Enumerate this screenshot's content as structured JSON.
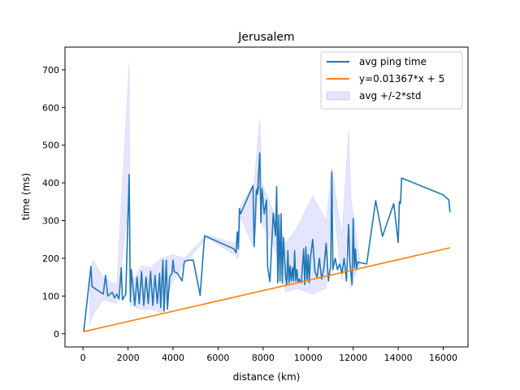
{
  "chart_data": {
    "type": "line",
    "title": "Jerusalem",
    "xlabel": "distance (km)",
    "ylabel": "time (ms)",
    "xlim": [
      -800,
      17100
    ],
    "ylim": [
      -35,
      760
    ],
    "x_ticks": [
      0,
      2000,
      4000,
      6000,
      8000,
      10000,
      12000,
      14000,
      16000
    ],
    "y_ticks": [
      0,
      100,
      200,
      300,
      400,
      500,
      600,
      700
    ],
    "grid": false,
    "legend_position": "upper right",
    "legend": [
      "avg ping time",
      "y=0.01367*x + 5",
      "avg +/-2*std"
    ],
    "series": [
      {
        "name": "avg ping time",
        "style": "line",
        "color": "#1f77b4",
        "points": [
          [
            30,
            5
          ],
          [
            350,
            178
          ],
          [
            400,
            125
          ],
          [
            900,
            105
          ],
          [
            1000,
            155
          ],
          [
            1100,
            100
          ],
          [
            1300,
            110
          ],
          [
            1400,
            95
          ],
          [
            1500,
            105
          ],
          [
            1600,
            92
          ],
          [
            1700,
            175
          ],
          [
            1750,
            90
          ],
          [
            1900,
            105
          ],
          [
            2050,
            422
          ],
          [
            2100,
            85
          ],
          [
            2150,
            170
          ],
          [
            2300,
            75
          ],
          [
            2400,
            150
          ],
          [
            2500,
            80
          ],
          [
            2600,
            165
          ],
          [
            2700,
            75
          ],
          [
            2800,
            150
          ],
          [
            2900,
            80
          ],
          [
            3000,
            165
          ],
          [
            3100,
            75
          ],
          [
            3200,
            155
          ],
          [
            3300,
            80
          ],
          [
            3400,
            160
          ],
          [
            3450,
            70
          ],
          [
            3550,
            195
          ],
          [
            3600,
            60
          ],
          [
            3700,
            195
          ],
          [
            3750,
            65
          ],
          [
            3850,
            150
          ],
          [
            3950,
            160
          ],
          [
            4000,
            195
          ],
          [
            4050,
            165
          ],
          [
            4200,
            160
          ],
          [
            4400,
            140
          ],
          [
            4500,
            192
          ],
          [
            4700,
            195
          ],
          [
            4900,
            195
          ],
          [
            5200,
            102
          ],
          [
            5400,
            260
          ],
          [
            6700,
            225
          ],
          [
            6800,
            215
          ],
          [
            6850,
            270
          ],
          [
            6900,
            225
          ],
          [
            6950,
            332
          ],
          [
            7000,
            318
          ],
          [
            7550,
            393
          ],
          [
            7600,
            232
          ],
          [
            7700,
            380
          ],
          [
            7800,
            390
          ],
          [
            7750,
            370
          ],
          [
            7850,
            480
          ],
          [
            7900,
            295
          ],
          [
            7950,
            385
          ],
          [
            8050,
            318
          ],
          [
            8150,
            355
          ],
          [
            8200,
            178
          ],
          [
            8300,
            138
          ],
          [
            8450,
            320
          ],
          [
            8550,
            260
          ],
          [
            8600,
            390
          ],
          [
            8650,
            135
          ],
          [
            8700,
            315
          ],
          [
            8750,
            140
          ],
          [
            8800,
            318
          ],
          [
            8850,
            135
          ],
          [
            8900,
            255
          ],
          [
            9000,
            150
          ],
          [
            9050,
            130
          ],
          [
            9100,
            220
          ],
          [
            9150,
            135
          ],
          [
            9200,
            180
          ],
          [
            9250,
            140
          ],
          [
            9300,
            175
          ],
          [
            9350,
            140
          ],
          [
            9400,
            220
          ],
          [
            9450,
            140
          ],
          [
            9500,
            170
          ],
          [
            9550,
            135
          ],
          [
            9600,
            145
          ],
          [
            9700,
            135
          ],
          [
            9800,
            225
          ],
          [
            9850,
            130
          ],
          [
            9900,
            230
          ],
          [
            9950,
            140
          ],
          [
            10000,
            210
          ],
          [
            10050,
            135
          ],
          [
            10100,
            200
          ],
          [
            10200,
            250
          ],
          [
            10300,
            165
          ],
          [
            10400,
            150
          ],
          [
            10500,
            200
          ],
          [
            10600,
            145
          ],
          [
            10700,
            175
          ],
          [
            10800,
            240
          ],
          [
            10900,
            140
          ],
          [
            11000,
            180
          ],
          [
            11050,
            430
          ],
          [
            11100,
            170
          ],
          [
            11200,
            200
          ],
          [
            11300,
            170
          ],
          [
            11400,
            185
          ],
          [
            11500,
            160
          ],
          [
            11600,
            200
          ],
          [
            11700,
            140
          ],
          [
            11800,
            290
          ],
          [
            11850,
            190
          ],
          [
            11950,
            130
          ],
          [
            12000,
            305
          ],
          [
            12050,
            175
          ],
          [
            12100,
            225
          ],
          [
            12150,
            170
          ],
          [
            12200,
            190
          ],
          [
            12600,
            185
          ],
          [
            13000,
            353
          ],
          [
            13300,
            258
          ],
          [
            13800,
            345
          ],
          [
            14000,
            242
          ],
          [
            14050,
            350
          ],
          [
            14100,
            345
          ],
          [
            14150,
            413
          ],
          [
            16000,
            368
          ],
          [
            16250,
            355
          ],
          [
            16300,
            322
          ]
        ]
      },
      {
        "name": "y=0.01367*x + 5",
        "style": "line",
        "color": "#ff7f0e",
        "points": [
          [
            30,
            5.4
          ],
          [
            16300,
            227.8
          ]
        ]
      },
      {
        "name": "avg +/-2*std",
        "style": "band",
        "color": "#0000ff",
        "opacity": 0.1,
        "upper": [
          [
            300,
            160
          ],
          [
            450,
            195
          ],
          [
            900,
            150
          ],
          [
            1500,
            130
          ],
          [
            2050,
            720
          ],
          [
            2100,
            130
          ],
          [
            2600,
            180
          ],
          [
            3000,
            175
          ],
          [
            3500,
            200
          ],
          [
            4000,
            210
          ],
          [
            4500,
            200
          ],
          [
            5500,
            262
          ],
          [
            6700,
            240
          ],
          [
            6900,
            250
          ],
          [
            7000,
            340
          ],
          [
            7600,
            400
          ],
          [
            7850,
            570
          ],
          [
            7950,
            400
          ],
          [
            8550,
            310
          ],
          [
            9000,
            240
          ],
          [
            9500,
            280
          ],
          [
            10200,
            365
          ],
          [
            10800,
            300
          ],
          [
            11050,
            440
          ],
          [
            11500,
            260
          ],
          [
            11800,
            540
          ],
          [
            11900,
            360
          ],
          [
            12050,
            300
          ],
          [
            12200,
            230
          ],
          [
            12300,
            195
          ]
        ],
        "lower": [
          [
            300,
            25
          ],
          [
            450,
            50
          ],
          [
            900,
            90
          ],
          [
            1500,
            80
          ],
          [
            2050,
            350
          ],
          [
            2100,
            75
          ],
          [
            2600,
            65
          ],
          [
            3000,
            65
          ],
          [
            3500,
            55
          ],
          [
            4000,
            140
          ],
          [
            4500,
            185
          ],
          [
            5500,
            255
          ],
          [
            6700,
            210
          ],
          [
            6900,
            200
          ],
          [
            7000,
            310
          ],
          [
            7600,
            225
          ],
          [
            7850,
            420
          ],
          [
            7950,
            290
          ],
          [
            8550,
            220
          ],
          [
            9000,
            110
          ],
          [
            9500,
            120
          ],
          [
            10200,
            105
          ],
          [
            10800,
            120
          ],
          [
            11050,
            380
          ],
          [
            11500,
            140
          ],
          [
            11800,
            280
          ],
          [
            11900,
            120
          ],
          [
            12050,
            150
          ],
          [
            12200,
            175
          ],
          [
            12300,
            180
          ]
        ]
      }
    ]
  }
}
